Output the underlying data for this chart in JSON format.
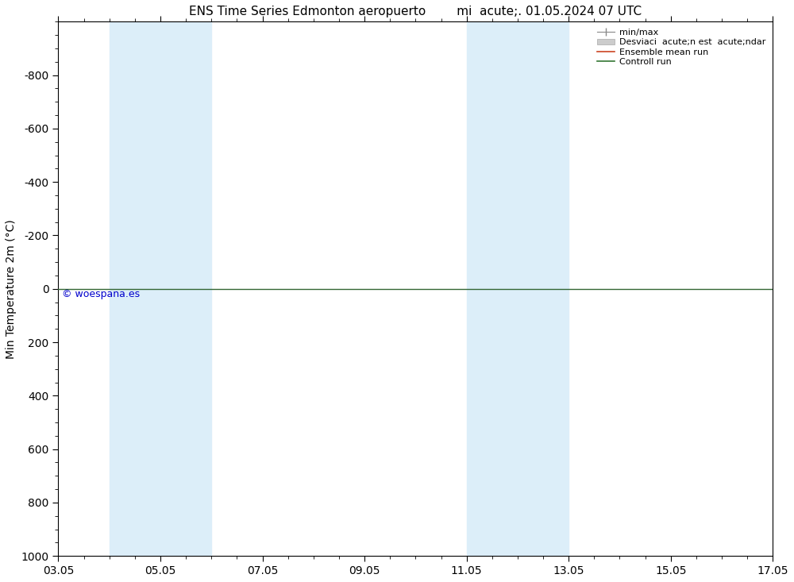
{
  "title_left": "ENS Time Series Edmonton aeropuerto",
  "title_right": "mi  acute;. 01.05.2024 07 UTC",
  "ylabel": "Min Temperature 2m (°C)",
  "ylim_bottom": 1000,
  "ylim_top": -1000,
  "yticks": [
    -800,
    -600,
    -400,
    -200,
    0,
    200,
    400,
    600,
    800,
    1000
  ],
  "xlim_start": 0,
  "xlim_end": 336,
  "xtick_positions": [
    0,
    48,
    96,
    144,
    192,
    240,
    288,
    336
  ],
  "xtick_labels": [
    "03.05",
    "05.05",
    "07.05",
    "09.05",
    "11.05",
    "13.05",
    "15.05",
    "17.05"
  ],
  "shade_regions": [
    {
      "xstart": 24,
      "xend": 72,
      "color": "#dceef9"
    },
    {
      "xstart": 192,
      "xend": 240,
      "color": "#dceef9"
    }
  ],
  "hline_y": 0,
  "hline_color": "#336633",
  "background_color": "#ffffff",
  "plot_bg_color": "#ffffff",
  "copyright_text": "© woespana.es",
  "copyright_color": "#0000cc",
  "tick_label_fontsize": 10,
  "axis_label_fontsize": 10,
  "title_fontsize": 11
}
